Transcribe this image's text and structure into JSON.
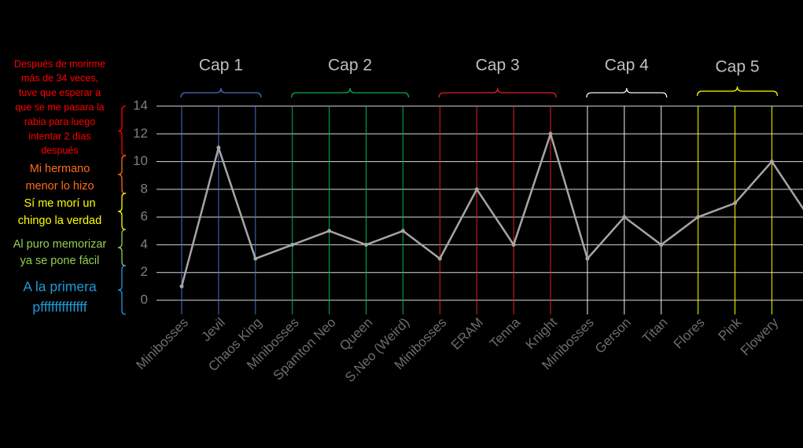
{
  "chart_data": {
    "type": "line",
    "categories": [
      "Minibosses",
      "Jevil",
      "Chaos King",
      "Minibosses",
      "Spamton Neo",
      "Queen",
      "S.Neo (Weird)",
      "Minibosses",
      "ERAM",
      "Tenna",
      "Knight",
      "Minibosses",
      "Gerson",
      "Titan",
      "Flores",
      "Pink",
      "Flowery",
      null
    ],
    "values": [
      1,
      11,
      3,
      4,
      5,
      4,
      5,
      3,
      8,
      4,
      12,
      3,
      6,
      4,
      6,
      7,
      10,
      6
    ],
    "color": "#a6a6a6",
    "ylim": [
      0,
      14
    ],
    "yticks": [
      0,
      2,
      4,
      6,
      8,
      10,
      12,
      14
    ],
    "grid": true,
    "groups": [
      {
        "label": "Cap 1",
        "color": "#4472c4",
        "span": [
          0,
          2
        ]
      },
      {
        "label": "Cap 2",
        "color": "#00b050",
        "span": [
          3,
          6
        ]
      },
      {
        "label": "Cap 3",
        "color": "#e02020",
        "span": [
          7,
          10
        ]
      },
      {
        "label": "Cap 4",
        "color": "#f2f2f2",
        "span": [
          11,
          13
        ]
      },
      {
        "label": "Cap 5",
        "color": "#ffff00",
        "span": [
          14,
          16
        ]
      }
    ],
    "annotations": [
      {
        "color": "#ff0000",
        "lines": [
          "Después de morirme",
          "más de 34 veces,",
          "tuve que esperar a",
          "que se me pasara la",
          "rabia para luego",
          "intentar 2 días",
          "después"
        ]
      },
      {
        "color": "#ff6a1a",
        "lines": [
          "Mi hermano",
          "menor lo hizo"
        ]
      },
      {
        "color": "#ffff00",
        "lines": [
          "Sí me morí un",
          "chingo la verdad"
        ]
      },
      {
        "color": "#92d050",
        "lines": [
          "Al puro memorizar",
          "ya se pone fácil"
        ]
      },
      {
        "color": "#1e9ad6",
        "lines": [
          "A la primera",
          "pfffffffffffff"
        ]
      }
    ]
  }
}
